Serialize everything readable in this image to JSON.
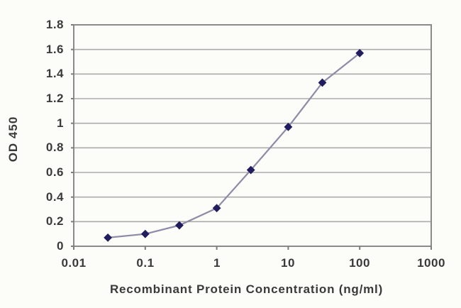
{
  "figure": {
    "background": "#fcfcf9",
    "text_color": "#3a3a3a"
  },
  "chart_data": {
    "type": "line",
    "title": "",
    "xlabel": "Recombinant Protein Concentration (ng/ml)",
    "ylabel": "OD 450",
    "x_scale": "log",
    "y_scale": "linear",
    "xlim": [
      0.01,
      1000
    ],
    "ylim": [
      0,
      1.8
    ],
    "x_ticks": [
      0.01,
      0.1,
      1,
      10,
      100,
      1000
    ],
    "x_tick_labels": [
      "0.01",
      "0.1",
      "1",
      "10",
      "100",
      "1000"
    ],
    "y_ticks": [
      0,
      0.2,
      0.4,
      0.6,
      0.8,
      1,
      1.2,
      1.4,
      1.6,
      1.8
    ],
    "y_tick_labels": [
      "0",
      "0.2",
      "0.4",
      "0.6",
      "0.8",
      "1",
      "1.2",
      "1.4",
      "1.6",
      "1.8"
    ],
    "grid": "horizontal",
    "legend": "none",
    "series": [
      {
        "name": "OD 450",
        "x": [
          0.03,
          0.1,
          0.3,
          1,
          3,
          10,
          30,
          100
        ],
        "y": [
          0.07,
          0.1,
          0.17,
          0.31,
          0.62,
          0.97,
          1.33,
          1.57
        ],
        "marker": "diamond",
        "marker_color": "#211d5e",
        "line_color": "#8d8ba6"
      }
    ],
    "colors": {
      "gridline": "#ababab",
      "axis_border": "#8a8a8a",
      "tick": "#7d7d7d"
    }
  }
}
